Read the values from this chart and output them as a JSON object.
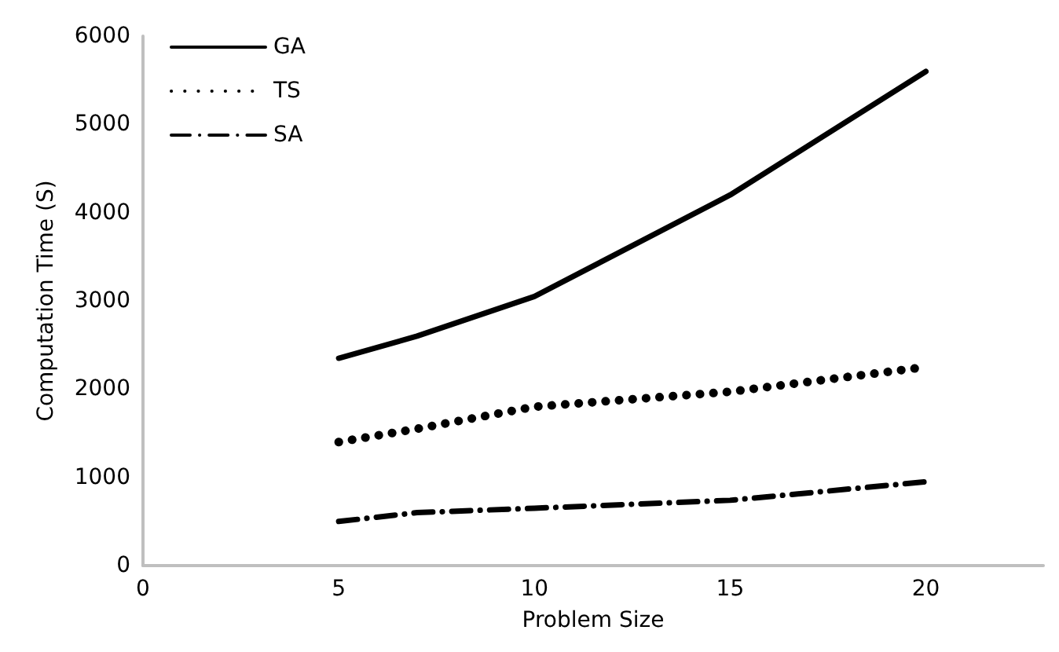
{
  "chart_data": {
    "type": "line",
    "xlabel": "Problem Size",
    "ylabel": "Computation Time (S)",
    "x": [
      5,
      7,
      10,
      15,
      20
    ],
    "series": [
      {
        "name": "GA",
        "color": "#000000",
        "line_style": "solid",
        "values": [
          2350,
          2600,
          3050,
          4200,
          5600
        ]
      },
      {
        "name": "TS",
        "color": "#000000",
        "line_style": "dotted",
        "values": [
          1400,
          1550,
          1800,
          1970,
          2250
        ]
      },
      {
        "name": "SA",
        "color": "#000000",
        "line_style": "dashed",
        "values": [
          500,
          600,
          650,
          740,
          950
        ]
      }
    ],
    "xlim": [
      0,
      23
    ],
    "ylim": [
      0,
      6000
    ],
    "xticks": [
      0,
      5,
      10,
      15,
      20
    ],
    "yticks": [
      0,
      1000,
      2000,
      3000,
      4000,
      5000,
      6000
    ],
    "grid": false,
    "legend": "top left",
    "marker": "none"
  }
}
